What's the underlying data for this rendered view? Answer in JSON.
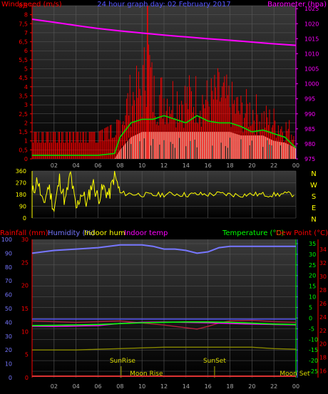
{
  "title": "24 hour graph day:  02 February 2017",
  "colors": {
    "background": "#000000",
    "plot_gradient_top": "#3a3a3a",
    "plot_gradient_bottom": "#000000",
    "grid": "#5a5a5a",
    "wind": "#ff0000",
    "wind_avg": "#00dd00",
    "wind_fill": "#d8f0d8",
    "barometer": "#ff00ff",
    "direction": "#ffff00",
    "humidity": "#7777ff",
    "rainfall": "#ff0000",
    "indoor_hum": "#ffff00",
    "indoor_temp": "#ff00ff",
    "temperature": "#00ff00",
    "dew_point": "#ff0000",
    "axis_blue": "#5555ff",
    "sun_line": "#aaaa00",
    "moon_line": "#dd3333"
  },
  "chart_data": [
    {
      "type": "line",
      "name": "wind-barometer",
      "labels": {
        "left": "Windspeed (m/s)",
        "right": "Barometer (hpa)"
      },
      "x_ticks": [
        "02",
        "04",
        "06",
        "08",
        "10",
        "12",
        "14",
        "16",
        "18",
        "20",
        "22",
        "00"
      ],
      "y_left_ticks": [
        "0",
        "0,5",
        "1",
        "1,5",
        "2",
        "2,5",
        "3",
        "3,5",
        "4",
        "4,5",
        "5",
        "5,5",
        "6",
        "6,5",
        "7",
        "7,5",
        "8",
        "8,5"
      ],
      "y_left_range": [
        0,
        8.5
      ],
      "y_right_ticks": [
        "975",
        "980",
        "985",
        "990",
        "995",
        "1000",
        "1005",
        "1010",
        "1015",
        "1020",
        "1025"
      ],
      "y_right_range": [
        975,
        1026
      ],
      "x_range": [
        0,
        24
      ],
      "barometer": {
        "x": [
          0,
          2,
          4,
          6,
          8,
          10,
          12,
          14,
          16,
          18,
          20,
          22,
          24
        ],
        "y": [
          1021.5,
          1020.5,
          1019.4,
          1018.4,
          1017.6,
          1016.9,
          1016.2,
          1015.6,
          1015.0,
          1014.5,
          1013.9,
          1013.3,
          1012.8
        ]
      },
      "gust_envelope": {
        "x": [
          0,
          2,
          4,
          6,
          7.5,
          8,
          9,
          10,
          10.5,
          11,
          12,
          13,
          14,
          15,
          16,
          17,
          18,
          19,
          20,
          21,
          22,
          23,
          24
        ],
        "y": [
          1.5,
          1.5,
          1.5,
          1.5,
          2.0,
          3.0,
          5.0,
          5.4,
          8.5,
          5.2,
          5.0,
          5.0,
          4.8,
          5.0,
          4.6,
          5.2,
          4.5,
          3.8,
          4.0,
          3.2,
          3.0,
          2.5,
          2.0
        ]
      },
      "average_wind": {
        "x": [
          0,
          2,
          4,
          6,
          7.5,
          8,
          9,
          10,
          11,
          12,
          13,
          14,
          15,
          16,
          17,
          18,
          19,
          20,
          21,
          22,
          23,
          24
        ],
        "y": [
          0.2,
          0.2,
          0.2,
          0.2,
          0.3,
          1.2,
          2.0,
          2.2,
          2.2,
          2.4,
          2.2,
          2.0,
          2.4,
          2.1,
          2.0,
          2.0,
          1.8,
          1.5,
          1.6,
          1.4,
          1.2,
          0.6
        ]
      },
      "calm_band": {
        "x": [
          0,
          2,
          4,
          6,
          7.5,
          8,
          9,
          10,
          11,
          12,
          13,
          14,
          15,
          16,
          17,
          18,
          19,
          20,
          21,
          22,
          23,
          24
        ],
        "y": [
          0,
          0,
          0,
          0,
          0,
          0.5,
          1.2,
          1.5,
          1.5,
          1.5,
          1.5,
          1.5,
          1.5,
          1.5,
          1.5,
          1.5,
          1.3,
          1.3,
          1.3,
          1.0,
          0.9,
          0.6
        ]
      }
    },
    {
      "type": "line",
      "name": "wind-direction",
      "x_range": [
        0,
        24
      ],
      "y_ticks": [
        "0",
        "90",
        "180",
        "270",
        "360"
      ],
      "y_range": [
        0,
        360
      ],
      "compass": [
        "N",
        "W",
        "S",
        "E",
        "N"
      ],
      "direction": {
        "x": [
          0,
          0.5,
          1,
          1.5,
          2,
          2.5,
          3,
          3.5,
          4,
          4.5,
          5,
          5.5,
          6,
          6.5,
          7,
          7.5,
          8,
          9,
          10,
          11,
          12,
          13,
          14,
          15,
          16,
          17,
          18,
          19,
          20,
          21,
          22,
          23,
          24
        ],
        "y": [
          180,
          300,
          90,
          250,
          60,
          300,
          120,
          340,
          60,
          200,
          110,
          280,
          150,
          230,
          170,
          330,
          190,
          185,
          180,
          175,
          180,
          185,
          178,
          182,
          180,
          186,
          180,
          176,
          182,
          180,
          178,
          184,
          180
        ]
      }
    },
    {
      "type": "line",
      "name": "temp-humidity",
      "labels": {
        "rainfall": "Rainfall (mm)",
        "humidity": "Humidity (%)",
        "indoor_hum": "Indoor hum",
        "indoor_temp": "Indoor temp",
        "temperature": "Temperature (°C)",
        "dew_point": "Dew Point (°C)"
      },
      "x_ticks": [
        "02",
        "04",
        "06",
        "08",
        "10",
        "12",
        "14",
        "16",
        "18",
        "20",
        "22",
        "00"
      ],
      "x_range": [
        0,
        24
      ],
      "humidity_ticks": [
        "0",
        "10",
        "20",
        "30",
        "40",
        "50",
        "60",
        "70",
        "80",
        "90",
        "100"
      ],
      "humidity_range": [
        0,
        100
      ],
      "rain_ticks": [
        "0",
        "5",
        "10",
        "15",
        "20",
        "25",
        "30"
      ],
      "rain_range": [
        0,
        30
      ],
      "temp_ticks": [
        "-25",
        "-20",
        "-15",
        "-10",
        "-5",
        "0",
        "5",
        "10",
        "15",
        "20",
        "25",
        "30",
        "35"
      ],
      "temp_range": [
        -28,
        37
      ],
      "dew_ticks": [
        "16",
        "18",
        "20",
        "22",
        "24",
        "26",
        "28",
        "30",
        "32",
        "34"
      ],
      "dew_range": [
        15,
        35.5
      ],
      "humidity": {
        "x": [
          0,
          2,
          4,
          6,
          8,
          10,
          11,
          12,
          13,
          14,
          15,
          16,
          17,
          18,
          20,
          22,
          24
        ],
        "y": [
          90,
          92,
          93,
          94,
          96,
          96,
          95,
          93,
          93,
          92,
          90,
          91,
          94,
          95,
          95,
          95,
          95
        ]
      },
      "indoor_hum": {
        "x": [
          0,
          2,
          4,
          6,
          8,
          10,
          12,
          14,
          16,
          18,
          20,
          22,
          24
        ],
        "y": [
          20,
          20,
          20,
          20.5,
          21,
          21.5,
          22,
          22,
          22,
          22,
          22,
          21,
          20.5
        ]
      },
      "temperature": {
        "x": [
          0,
          2,
          4,
          6,
          8,
          10,
          12,
          14,
          16,
          18,
          20,
          22,
          24
        ],
        "y": [
          -3.5,
          -3.4,
          -3.2,
          -3.0,
          -2.6,
          -2.2,
          -2.0,
          -1.8,
          -1.8,
          -2.0,
          -2.4,
          -2.8,
          -3.0
        ]
      },
      "dew_point": {
        "x": [
          0,
          2,
          4,
          6,
          8,
          10,
          12,
          14,
          15,
          16,
          17,
          18,
          20,
          22,
          24
        ],
        "y": [
          23.4,
          23.3,
          23.2,
          23.3,
          23.4,
          23.1,
          22.8,
          22.4,
          22.2,
          22.6,
          23.1,
          23.4,
          23.5,
          23.3,
          23.2
        ]
      },
      "indoor_temp": {
        "x": [
          0,
          2,
          4,
          6,
          8,
          10,
          12,
          14,
          16,
          18,
          20,
          22,
          24
        ],
        "y": [
          -3.8,
          -3.9,
          -3.7,
          -3.5,
          -2.5,
          -2.0,
          -1.9,
          -2.0,
          -2.2,
          -2.5,
          -2.8,
          -3.0,
          -3.2
        ]
      },
      "indoor_temp_ref": {
        "x": [
          0,
          24
        ],
        "y": [
          -0.5,
          -0.5
        ]
      },
      "rainfall": {
        "x": [
          0,
          24
        ],
        "y": [
          0,
          0
        ]
      },
      "events": {
        "sunrise": {
          "label": "SunRise",
          "x": 8.1
        },
        "sunset": {
          "label": "SunSet",
          "x": 16.6
        },
        "moonrise": {
          "label": "Moon Rise",
          "x": 10.4
        },
        "moonset": {
          "label": "Moon Set",
          "x": 23.9
        }
      }
    }
  ]
}
